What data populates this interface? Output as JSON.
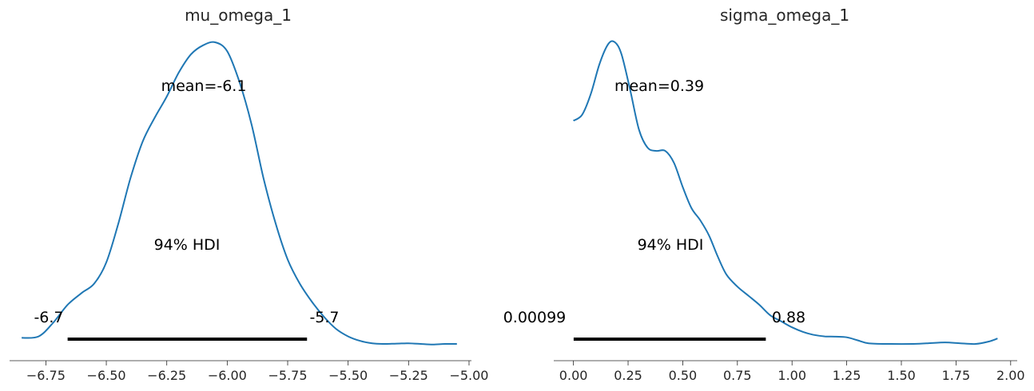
{
  "chart_data": [
    {
      "type": "line",
      "title": "mu_omega_1",
      "xlim": [
        -6.9,
        -4.99
      ],
      "xticks": [
        -6.75,
        -6.5,
        -6.25,
        -6.0,
        -5.75,
        -5.5,
        -5.25,
        -5.0
      ],
      "xtick_labels": [
        "−6.75",
        "−6.50",
        "−6.25",
        "−6.00",
        "−5.75",
        "−5.50",
        "−5.25",
        "−5.00"
      ],
      "color": "#1f77b4",
      "mean_label": "mean=-6.1",
      "hdi_label": "94% HDI",
      "hdi": [
        -6.66,
        -5.67
      ],
      "hdi_low_label": "-6.7",
      "hdi_high_label": "-5.7",
      "x": [
        -6.85,
        -6.78,
        -6.72,
        -6.66,
        -6.6,
        -6.55,
        -6.5,
        -6.45,
        -6.4,
        -6.35,
        -6.3,
        -6.25,
        -6.2,
        -6.15,
        -6.1,
        -6.05,
        -6.0,
        -5.95,
        -5.9,
        -5.85,
        -5.8,
        -5.75,
        -5.7,
        -5.65,
        -5.6,
        -5.55,
        -5.5,
        -5.45,
        -5.4,
        -5.35,
        -5.3,
        -5.25,
        -5.2,
        -5.15,
        -5.1,
        -5.05
      ],
      "y": [
        0.02,
        0.025,
        0.07,
        0.13,
        0.17,
        0.2,
        0.27,
        0.4,
        0.55,
        0.67,
        0.75,
        0.82,
        0.9,
        0.96,
        0.99,
        1.0,
        0.97,
        0.87,
        0.73,
        0.55,
        0.4,
        0.28,
        0.2,
        0.14,
        0.09,
        0.05,
        0.025,
        0.01,
        0.002,
        0.0,
        0.001,
        0.002,
        0.0,
        -0.002,
        0.0,
        0.0
      ]
    },
    {
      "type": "line",
      "title": "sigma_omega_1",
      "xlim": [
        -0.09,
        2.03
      ],
      "xticks": [
        0.0,
        0.25,
        0.5,
        0.75,
        1.0,
        1.25,
        1.5,
        1.75,
        2.0
      ],
      "xtick_labels": [
        "0.00",
        "0.25",
        "0.50",
        "0.75",
        "1.00",
        "1.25",
        "1.50",
        "1.75",
        "2.00"
      ],
      "color": "#1f77b4",
      "mean_label": "mean=0.39",
      "hdi_label": "94% HDI",
      "hdi": [
        0.00099,
        0.88
      ],
      "hdi_low_label": "0.00099",
      "hdi_high_label": "0.88",
      "x": [
        0.0,
        0.04,
        0.08,
        0.12,
        0.16,
        0.19,
        0.22,
        0.26,
        0.3,
        0.34,
        0.38,
        0.42,
        0.46,
        0.5,
        0.54,
        0.58,
        0.62,
        0.66,
        0.7,
        0.75,
        0.8,
        0.85,
        0.9,
        0.95,
        1.0,
        1.05,
        1.1,
        1.15,
        1.2,
        1.25,
        1.3,
        1.35,
        1.45,
        1.55,
        1.62,
        1.7,
        1.77,
        1.84,
        1.9,
        1.94
      ],
      "y": [
        0.74,
        0.76,
        0.83,
        0.93,
        0.995,
        1.0,
        0.96,
        0.84,
        0.71,
        0.65,
        0.64,
        0.64,
        0.6,
        0.52,
        0.45,
        0.41,
        0.36,
        0.29,
        0.23,
        0.19,
        0.16,
        0.13,
        0.095,
        0.075,
        0.055,
        0.04,
        0.03,
        0.025,
        0.024,
        0.022,
        0.012,
        0.002,
        0.0,
        0.0,
        0.002,
        0.005,
        0.002,
        0.0,
        0.008,
        0.018
      ]
    }
  ]
}
